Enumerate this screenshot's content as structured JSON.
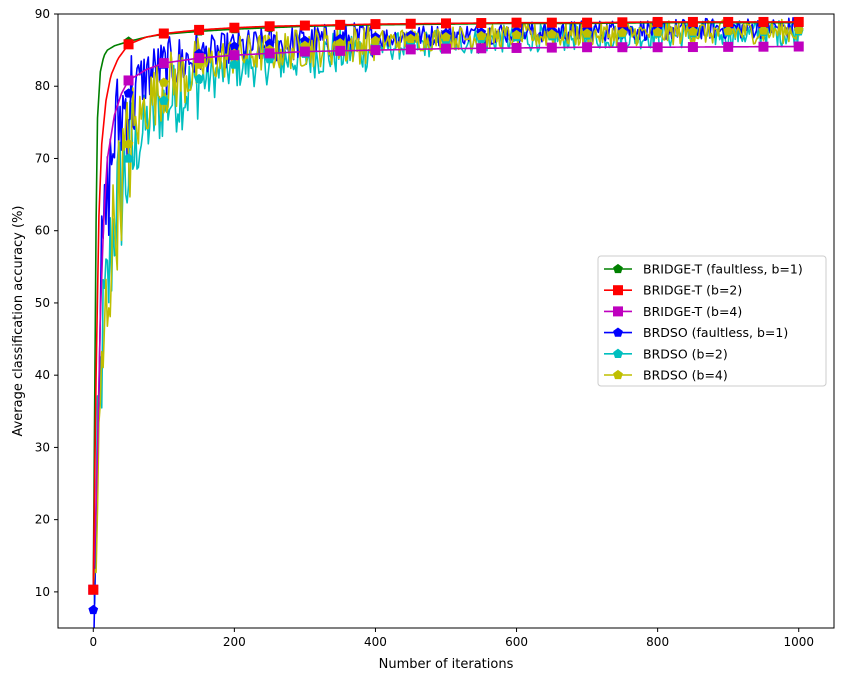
{
  "chart_data": {
    "type": "line",
    "title": "",
    "xlabel": "Number of iterations",
    "ylabel": "Average classification accuracy (%)",
    "xlim": [
      -50,
      1050
    ],
    "ylim": [
      5,
      90
    ],
    "xticks": [
      0,
      200,
      400,
      600,
      800,
      1000
    ],
    "yticks": [
      10,
      20,
      30,
      40,
      50,
      60,
      70,
      80,
      90
    ],
    "grid": false,
    "legend_position": "center-right",
    "series": [
      {
        "name": "BRIDGE-T (faultless, b=1)",
        "color": "#008000",
        "marker": "pentagon",
        "noise": 0,
        "points": [
          [
            0,
            10.3
          ],
          [
            5,
            74
          ],
          [
            10,
            82
          ],
          [
            15,
            84.2
          ],
          [
            20,
            85
          ],
          [
            30,
            85.6
          ],
          [
            50,
            86.2
          ],
          [
            75,
            86.8
          ],
          [
            100,
            87.2
          ],
          [
            150,
            87.6
          ],
          [
            200,
            87.9
          ],
          [
            250,
            88.1
          ],
          [
            300,
            88.3
          ],
          [
            400,
            88.5
          ],
          [
            500,
            88.6
          ],
          [
            600,
            88.7
          ],
          [
            700,
            88.7
          ],
          [
            800,
            88.8
          ],
          [
            1000,
            88.8
          ]
        ]
      },
      {
        "name": "BRIDGE-T (b=2)",
        "color": "#ff0000",
        "marker": "square",
        "noise": 0,
        "points": [
          [
            0,
            10.3
          ],
          [
            4,
            40
          ],
          [
            8,
            62
          ],
          [
            12,
            72
          ],
          [
            18,
            78
          ],
          [
            25,
            81.5
          ],
          [
            35,
            83.8
          ],
          [
            50,
            85.8
          ],
          [
            75,
            86.8
          ],
          [
            100,
            87.3
          ],
          [
            150,
            87.8
          ],
          [
            200,
            88.1
          ],
          [
            250,
            88.3
          ],
          [
            300,
            88.4
          ],
          [
            400,
            88.6
          ],
          [
            500,
            88.7
          ],
          [
            600,
            88.8
          ],
          [
            700,
            88.8
          ],
          [
            800,
            88.9
          ],
          [
            1000,
            88.9
          ]
        ]
      },
      {
        "name": "BRIDGE-T (b=4)",
        "color": "#bf00bf",
        "marker": "square",
        "noise": 0,
        "points": [
          [
            0,
            10.3
          ],
          [
            5,
            25
          ],
          [
            10,
            48
          ],
          [
            15,
            62
          ],
          [
            20,
            70
          ],
          [
            30,
            76
          ],
          [
            40,
            79
          ],
          [
            50,
            80.8
          ],
          [
            75,
            82.3
          ],
          [
            100,
            83.2
          ],
          [
            150,
            83.9
          ],
          [
            200,
            84.3
          ],
          [
            300,
            84.8
          ],
          [
            400,
            85.0
          ],
          [
            500,
            85.2
          ],
          [
            600,
            85.3
          ],
          [
            700,
            85.4
          ],
          [
            800,
            85.4
          ],
          [
            1000,
            85.5
          ]
        ]
      },
      {
        "name": "BRDSO (faultless, b=1)",
        "color": "#0000ff",
        "marker": "pentagon",
        "noise": 2.5,
        "points": [
          [
            0,
            7.5
          ],
          [
            3,
            15
          ],
          [
            6,
            35
          ],
          [
            10,
            52
          ],
          [
            15,
            60
          ],
          [
            20,
            65
          ],
          [
            25,
            70
          ],
          [
            30,
            74
          ],
          [
            40,
            77
          ],
          [
            50,
            79
          ],
          [
            75,
            82
          ],
          [
            100,
            83
          ],
          [
            150,
            84.5
          ],
          [
            200,
            85.5
          ],
          [
            300,
            86.3
          ],
          [
            400,
            86.8
          ],
          [
            500,
            87.3
          ],
          [
            600,
            87.6
          ],
          [
            800,
            88.0
          ],
          [
            1000,
            88.3
          ]
        ]
      },
      {
        "name": "BRDSO (b=2)",
        "color": "#00bfbf",
        "marker": "pentagon",
        "noise": 3.2,
        "points": [
          [
            0,
            10.3
          ],
          [
            3,
            15
          ],
          [
            6,
            28
          ],
          [
            10,
            40
          ],
          [
            15,
            48
          ],
          [
            20,
            52
          ],
          [
            25,
            58
          ],
          [
            30,
            63
          ],
          [
            40,
            67
          ],
          [
            50,
            70
          ],
          [
            75,
            75
          ],
          [
            100,
            78
          ],
          [
            150,
            81
          ],
          [
            200,
            83
          ],
          [
            300,
            84.5
          ],
          [
            400,
            85.5
          ],
          [
            500,
            86.3
          ],
          [
            600,
            86.8
          ],
          [
            800,
            87.3
          ],
          [
            1000,
            87.6
          ]
        ]
      },
      {
        "name": "BRDSO (b=4)",
        "color": "#bfbf00",
        "marker": "pentagon",
        "noise": 2.8,
        "points": [
          [
            0,
            10.3
          ],
          [
            3,
            14
          ],
          [
            6,
            22
          ],
          [
            10,
            35
          ],
          [
            15,
            45
          ],
          [
            20,
            52
          ],
          [
            25,
            57
          ],
          [
            30,
            62
          ],
          [
            40,
            68
          ],
          [
            50,
            72
          ],
          [
            75,
            78
          ],
          [
            100,
            80.5
          ],
          [
            150,
            83
          ],
          [
            200,
            84.5
          ],
          [
            300,
            85.6
          ],
          [
            400,
            86.3
          ],
          [
            500,
            86.8
          ],
          [
            600,
            87.1
          ],
          [
            800,
            87.5
          ],
          [
            1000,
            87.8
          ]
        ]
      }
    ]
  }
}
